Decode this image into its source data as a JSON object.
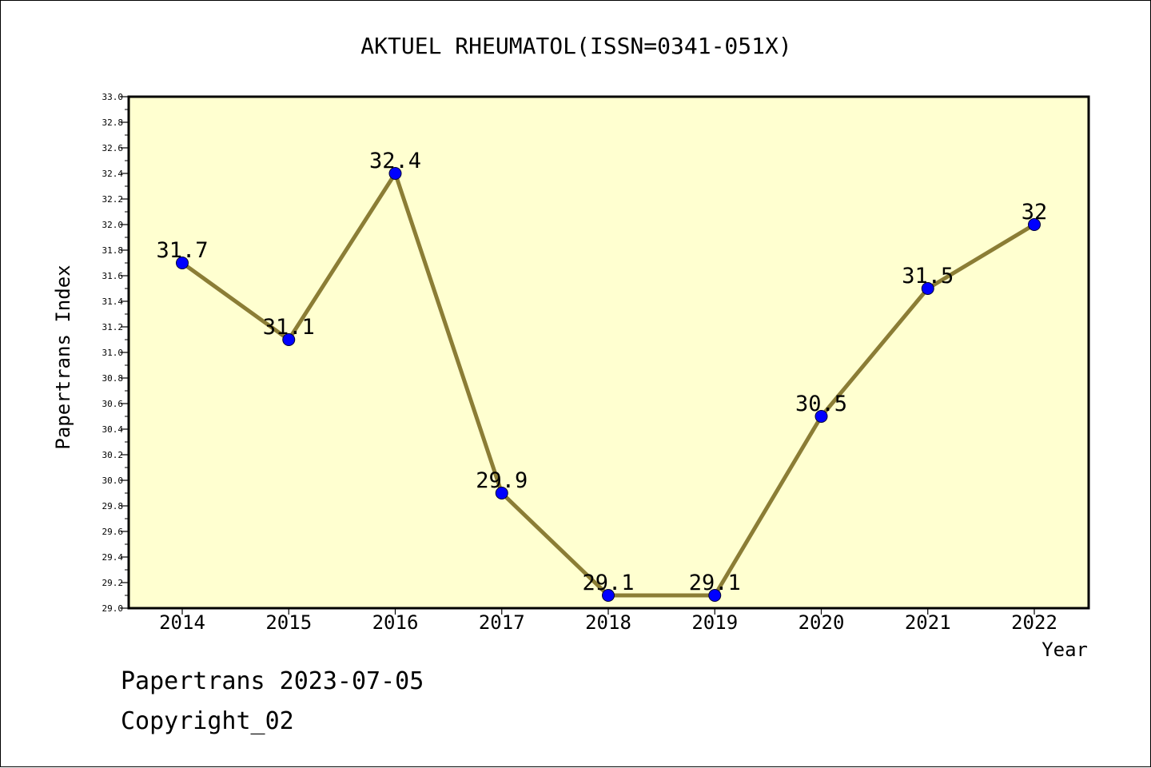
{
  "chart_data": {
    "type": "line",
    "title": "AKTUEL RHEUMATOL(ISSN=0341-051X)",
    "xlabel": "Year",
    "ylabel": "Papertrans Index",
    "categories": [
      "2014",
      "2015",
      "2016",
      "2017",
      "2018",
      "2019",
      "2020",
      "2021",
      "2022"
    ],
    "series": [
      {
        "values": [
          31.7,
          31.1,
          32.4,
          29.9,
          29.1,
          29.1,
          30.5,
          31.5,
          32.0
        ],
        "data_labels": [
          "31.7",
          "31.1",
          "32.4",
          "29.9",
          "29.1",
          "29.1",
          "30.5",
          "31.5",
          "32"
        ]
      }
    ],
    "ylim": [
      29.0,
      33.0
    ],
    "ytick_step": 0.2,
    "yticks": [
      "29.0",
      "29.2",
      "29.4",
      "29.6",
      "29.8",
      "30.0",
      "30.2",
      "30.4",
      "30.6",
      "30.8",
      "31.0",
      "31.2",
      "31.4",
      "31.6",
      "31.8",
      "32.0",
      "32.2",
      "32.4",
      "32.6",
      "32.8",
      "33.0"
    ],
    "grid": false,
    "colors": {
      "plot_background": "#ffffd0",
      "line": "#8b7d35",
      "marker": "#0000ff",
      "axis": "#000000"
    }
  },
  "footer": {
    "line1": "Papertrans 2023-07-05",
    "line2": "Copyright_02"
  }
}
